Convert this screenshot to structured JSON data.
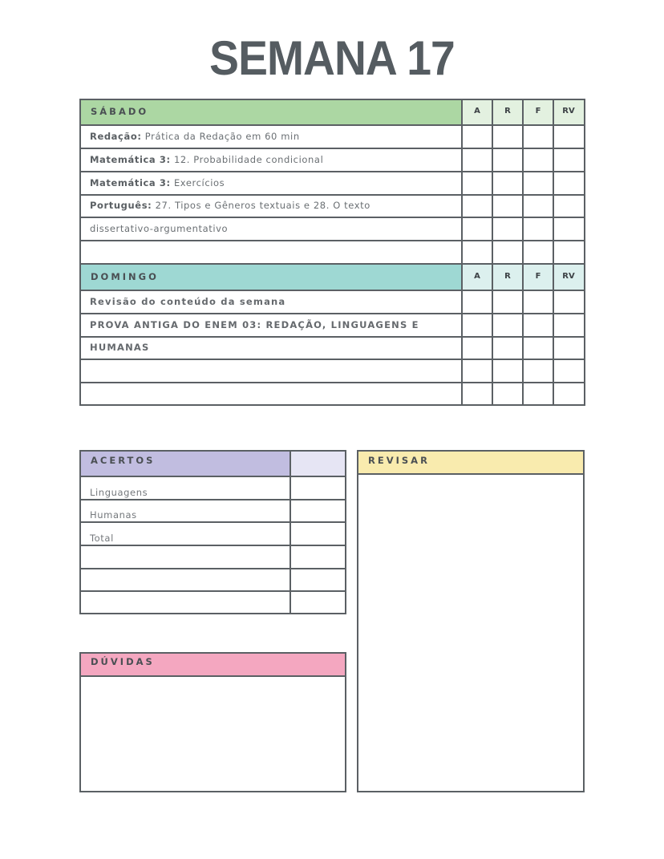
{
  "title": "SEMANA 17",
  "columns": [
    "A",
    "R",
    "F",
    "RV"
  ],
  "colors": {
    "sabado": "#acd7a3",
    "sabado_light": "#e3f1e0",
    "domingo": "#9ed8d3",
    "domingo_light": "#dcf0ee",
    "acertos": "#c1bde0",
    "acertos_light": "#e6e5f4",
    "duvidas": "#f4a7c0",
    "revisar": "#f9ebae",
    "border": "#5b6064"
  },
  "sabado": {
    "label": "SÁBADO",
    "rows": [
      {
        "subject": "Redação:",
        "topic": "Prática da Redação em 60 min"
      },
      {
        "subject": "Matemática 3:",
        "topic": "12. Probabilidade condicional"
      },
      {
        "subject": "Matemática 3:",
        "topic": "Exercícios"
      },
      {
        "subject": "Português:",
        "topic": "27. Tipos e Gêneros textuais e 28. O texto"
      },
      {
        "subject": "",
        "topic": "dissertativo-argumentativo"
      },
      {
        "subject": "",
        "topic": ""
      }
    ]
  },
  "domingo": {
    "label": "DOMINGO",
    "rows": [
      {
        "topic": "Revisão do conteúdo da semana"
      },
      {
        "topic": "PROVA ANTIGA DO ENEM 03: REDAÇÃO, LINGUAGENS E"
      },
      {
        "topic": "HUMANAS"
      },
      {
        "topic": ""
      },
      {
        "topic": ""
      }
    ]
  },
  "acertos": {
    "label": "ACERTOS",
    "rows": [
      "Linguagens",
      "Humanas",
      "Total",
      "",
      "",
      ""
    ]
  },
  "duvidas": {
    "label": "DÚVIDAS"
  },
  "revisar": {
    "label": "REVISAR"
  }
}
